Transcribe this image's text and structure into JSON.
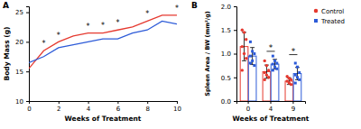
{
  "chart_data": [
    {
      "type": "line",
      "title": "A",
      "x_label": "Weeks of Treatment",
      "y_label": "Body Mass (g)",
      "x": [
        0,
        1,
        2,
        3,
        4,
        5,
        6,
        7,
        8,
        9,
        10
      ],
      "series": [
        {
          "color": "#e5392f",
          "values": [
            15.5,
            18.5,
            20.0,
            21.0,
            21.5,
            21.5,
            22.0,
            22.5,
            23.5,
            24.5,
            24.5
          ]
        },
        {
          "color": "#2d5bd8",
          "values": [
            16.5,
            17.5,
            19.0,
            19.5,
            20.0,
            20.5,
            20.5,
            21.5,
            22.0,
            23.5,
            23.0
          ]
        }
      ],
      "xlim": [
        0,
        10
      ],
      "xticks": [
        0,
        2,
        4,
        6,
        8,
        10
      ],
      "ylim": [
        10,
        26
      ],
      "yticks": [
        10,
        15,
        20,
        25
      ],
      "annotations": [
        {
          "text": "*",
          "x": 1,
          "y": 19.8
        },
        {
          "text": "*",
          "x": 2,
          "y": 21.2
        },
        {
          "text": "*",
          "x": 4,
          "y": 22.6
        },
        {
          "text": "*",
          "x": 5,
          "y": 22.8
        },
        {
          "text": "*",
          "x": 6,
          "y": 23.2
        },
        {
          "text": "*",
          "x": 8,
          "y": 24.8
        },
        {
          "text": "*",
          "x": 10,
          "y": 25.7
        }
      ]
    },
    {
      "type": "bar",
      "title": "B",
      "x_label": "Weeks of Treatment",
      "y_label": "Spleen Area / BW (mm²/g)",
      "categories": [
        "0",
        "4",
        "9"
      ],
      "series": [
        {
          "name": "Control",
          "color": "#e5392f",
          "marker": "circle",
          "values": [
            1.15,
            0.62,
            0.42
          ],
          "errors": [
            0.3,
            0.14,
            0.07
          ],
          "points": [
            [
              1.5,
              1.45,
              1.3,
              1.15,
              1.0,
              0.9,
              0.65
            ],
            [
              0.85,
              0.75,
              0.65,
              0.6,
              0.55,
              0.5,
              0.45
            ],
            [
              0.52,
              0.48,
              0.45,
              0.42,
              0.38,
              0.35
            ]
          ]
        },
        {
          "name": "Treated",
          "color": "#2d5bd8",
          "marker": "square",
          "values": [
            0.95,
            0.78,
            0.58
          ],
          "errors": [
            0.18,
            0.1,
            0.13
          ],
          "points": [
            [
              1.25,
              1.05,
              1.0,
              0.95,
              0.85,
              0.75,
              0.8
            ],
            [
              0.95,
              0.85,
              0.8,
              0.78,
              0.72,
              0.68,
              0.65
            ],
            [
              0.8,
              0.72,
              0.6,
              0.55,
              0.5,
              0.45,
              0.38
            ]
          ]
        }
      ],
      "ylim": [
        0,
        2
      ],
      "yticks": [
        {
          "value": 0,
          "label": "0.0"
        },
        {
          "value": 0.5,
          "label": "0.5"
        },
        {
          "value": 1,
          "label": "1.0"
        },
        {
          "value": 1.5,
          "label": "1.5"
        },
        {
          "value": 2,
          "label": "2.0"
        }
      ],
      "legend": "top-right",
      "annotations": [
        {
          "text": "*",
          "x": 1,
          "y": 1.05
        },
        {
          "text": "*",
          "x": 2,
          "y": 0.98
        }
      ]
    }
  ]
}
